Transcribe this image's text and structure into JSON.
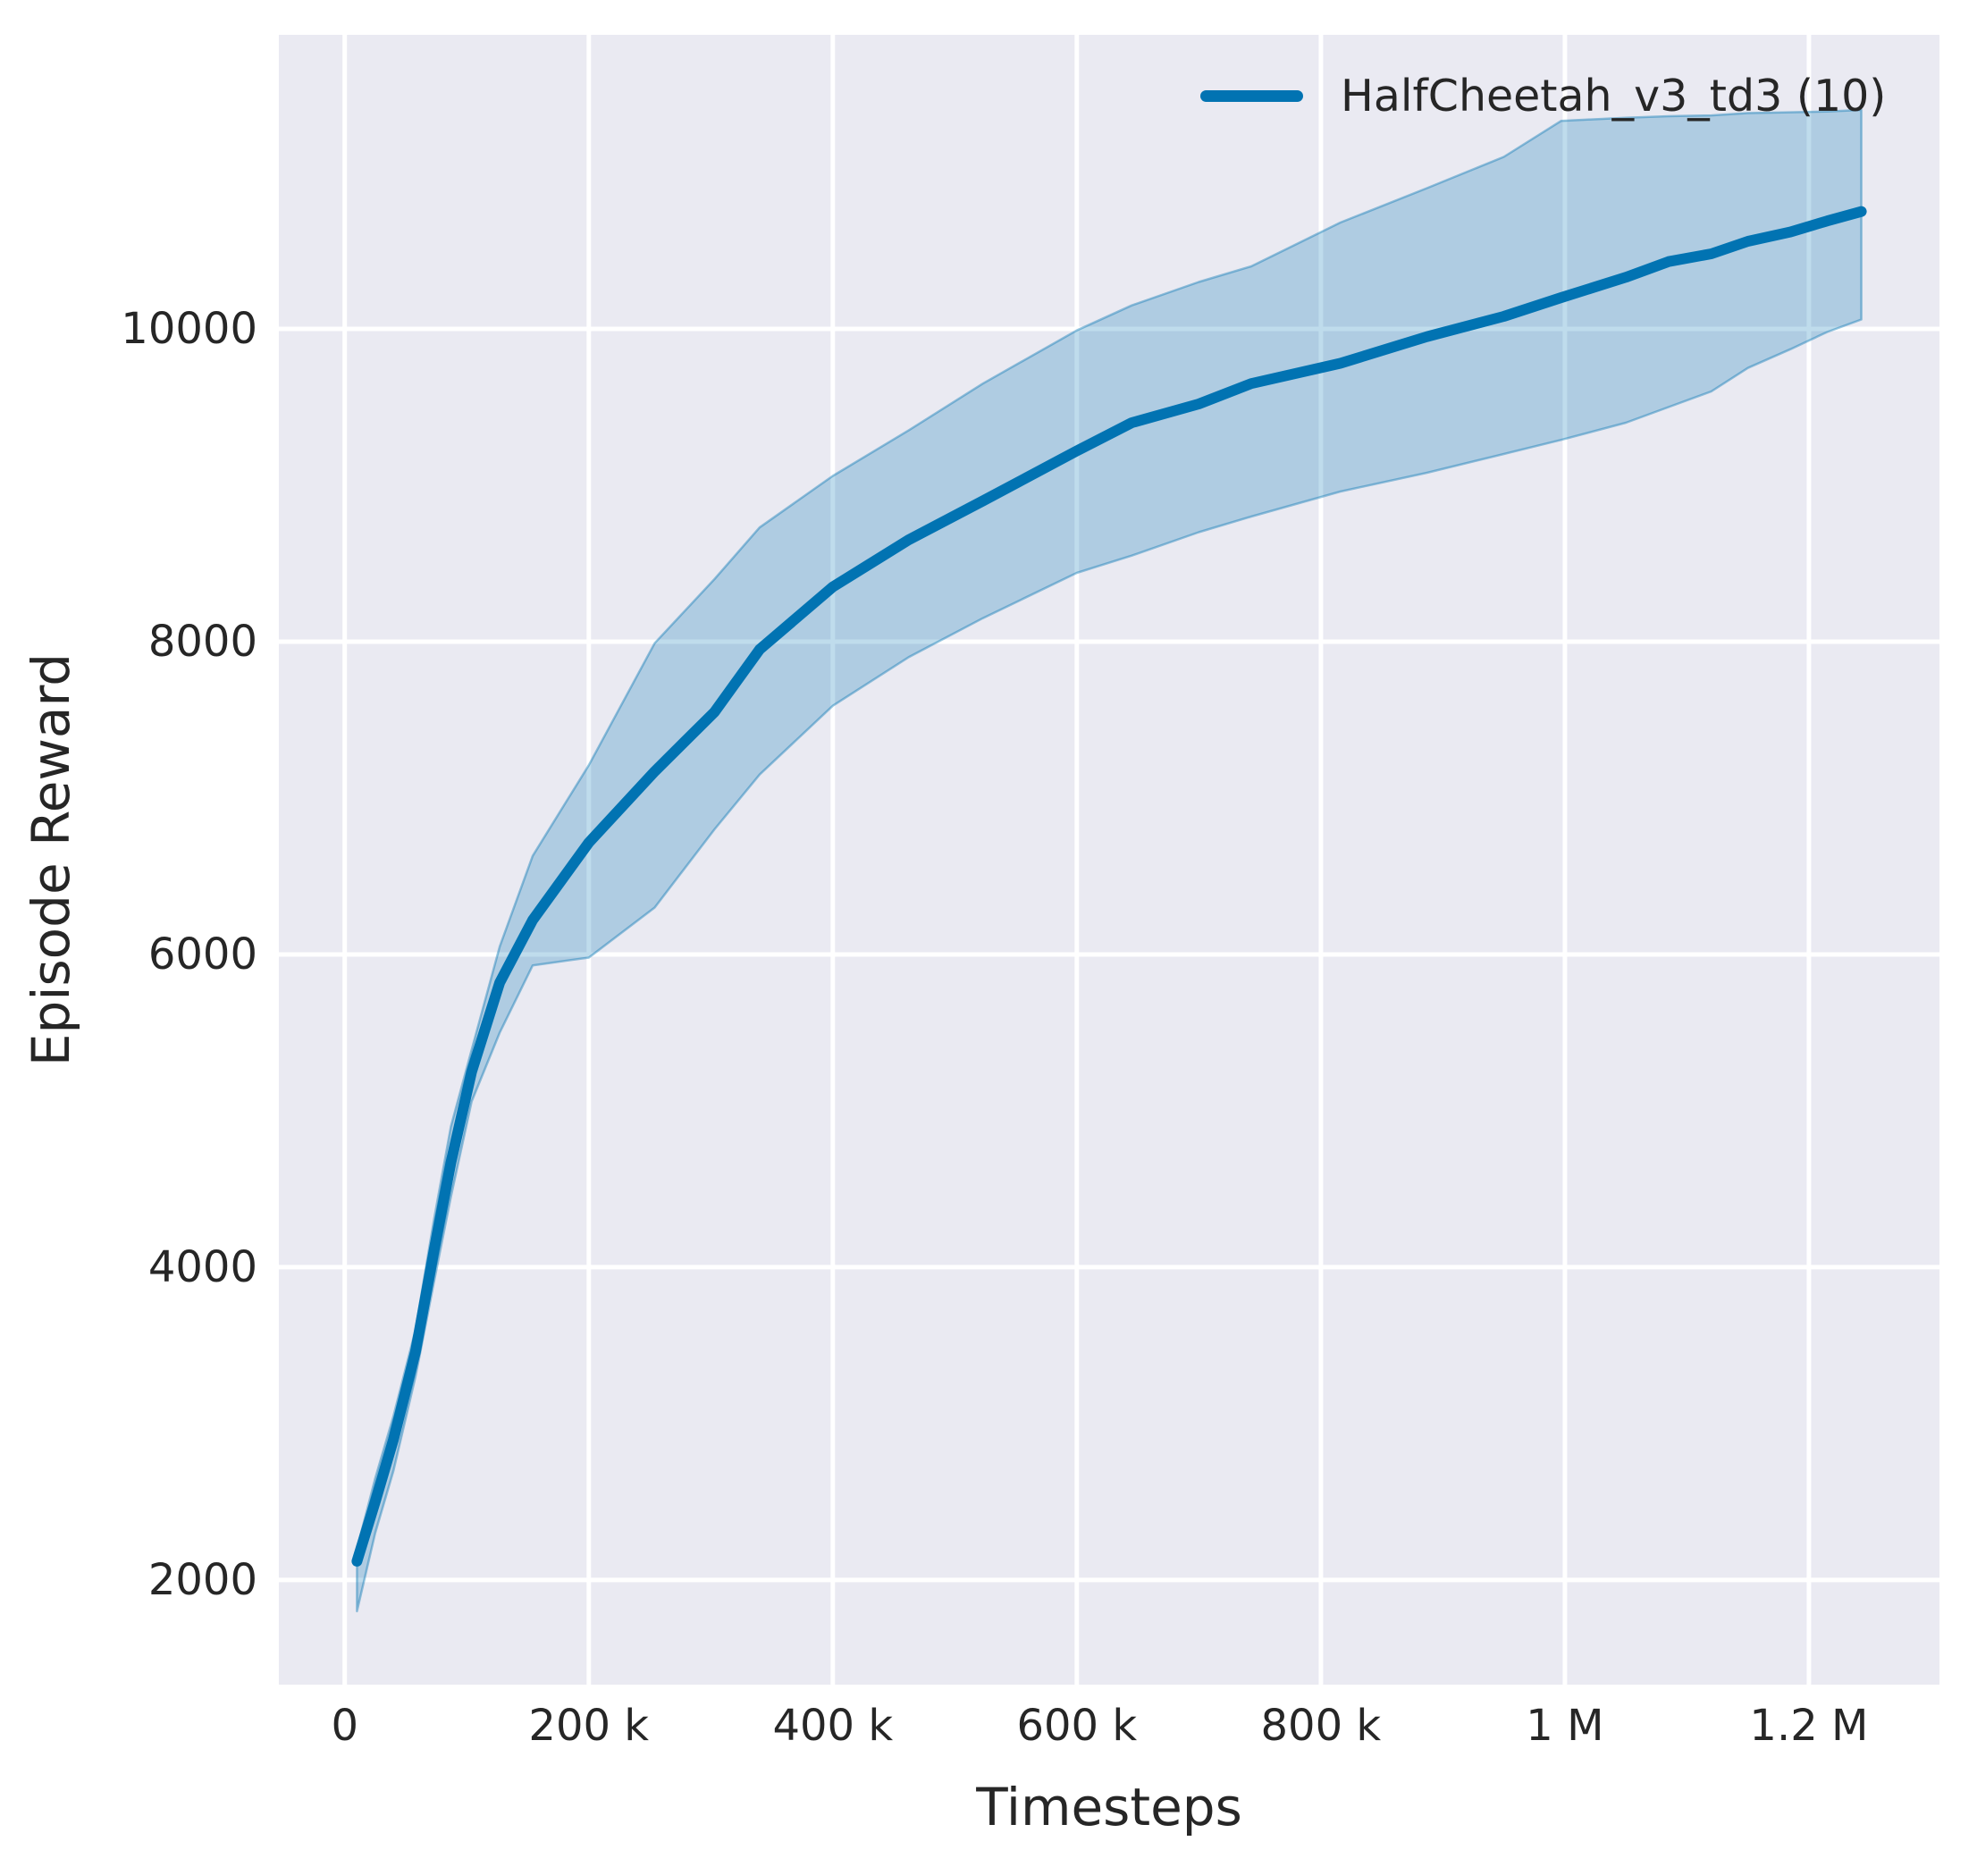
{
  "colors": {
    "accent": "#0173b2",
    "band_fill_alpha": 0.25,
    "plot_background": "#eaeaf2",
    "gridline": "#ffffff",
    "text": "#262626",
    "figure_background": "#ffffff"
  },
  "chart_data": {
    "type": "line",
    "title": "",
    "xlabel": "Timesteps",
    "ylabel": "Episode Reward",
    "grid": true,
    "legend_position": "upper right",
    "legend": [
      {
        "label": "HalfCheetah_v3_td3 (10)",
        "color": "#0173b2"
      }
    ],
    "xlim": [
      -54000,
      1307000
    ],
    "ylim": [
      1331,
      11880
    ],
    "x_ticks": [
      {
        "value": 0,
        "label": "0"
      },
      {
        "value": 200000,
        "label": "200 k"
      },
      {
        "value": 400000,
        "label": "400 k"
      },
      {
        "value": 600000,
        "label": "600 k"
      },
      {
        "value": 800000,
        "label": "800 k"
      },
      {
        "value": 1000000,
        "label": "1 M"
      },
      {
        "value": 1200000,
        "label": "1.2 M"
      }
    ],
    "y_ticks": [
      {
        "value": 2000,
        "label": "2000"
      },
      {
        "value": 4000,
        "label": "4000"
      },
      {
        "value": 6000,
        "label": "6000"
      },
      {
        "value": 8000,
        "label": "8000"
      },
      {
        "value": 10000,
        "label": "10000"
      }
    ],
    "series": [
      {
        "name": "HalfCheetah_v3_td3 (10)",
        "x": [
          10000,
          25000,
          40000,
          58000,
          73000,
          87000,
          104000,
          127000,
          154000,
          200000,
          254000,
          303000,
          340000,
          400000,
          462000,
          523000,
          600000,
          645000,
          700000,
          743000,
          816000,
          887000,
          950000,
          997000,
          1050000,
          1085000,
          1120000,
          1150000,
          1185000,
          1215000,
          1243000
        ],
        "mean": [
          2120,
          2500,
          2900,
          3460,
          4100,
          4670,
          5250,
          5820,
          6220,
          6715,
          7170,
          7550,
          7950,
          8350,
          8650,
          8900,
          9220,
          9400,
          9520,
          9650,
          9780,
          9950,
          10080,
          10200,
          10330,
          10430,
          10480,
          10560,
          10620,
          10690,
          10750
        ],
        "lower": [
          1800,
          2300,
          2700,
          3300,
          3900,
          4450,
          5060,
          5500,
          5930,
          5980,
          6300,
          6800,
          7150,
          7590,
          7900,
          8150,
          8440,
          8550,
          8700,
          8800,
          8960,
          9080,
          9200,
          9290,
          9400,
          9500,
          9600,
          9750,
          9870,
          9980,
          10060
        ],
        "upper": [
          2200,
          2650,
          3050,
          3600,
          4300,
          4900,
          5390,
          6050,
          6630,
          7210,
          7990,
          8400,
          8730,
          9060,
          9350,
          9650,
          9990,
          10150,
          10300,
          10400,
          10680,
          10900,
          11100,
          11330,
          11350,
          11360,
          11365,
          11380,
          11385,
          11390,
          11400
        ]
      }
    ]
  }
}
